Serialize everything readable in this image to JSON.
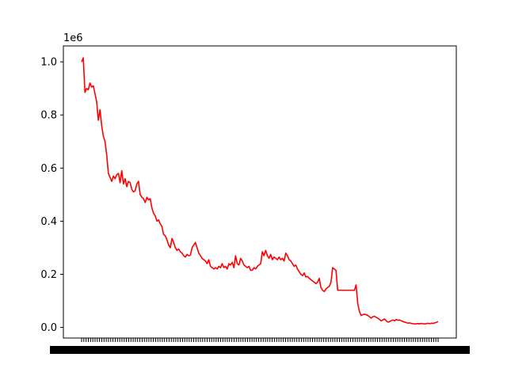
{
  "chart_data": {
    "type": "line",
    "title": "",
    "xlabel": "",
    "ylabel": "",
    "y_offset_label": "1e6",
    "y_scale": 1000000,
    "ylim": [
      -40000,
      1060000
    ],
    "yticks": [
      {
        "value": 0,
        "label": "0.0"
      },
      {
        "value": 200000,
        "label": "0.2"
      },
      {
        "value": 400000,
        "label": "0.4"
      },
      {
        "value": 600000,
        "label": "0.6"
      },
      {
        "value": 800000,
        "label": "0.8"
      },
      {
        "value": 1000000,
        "label": "1.0"
      }
    ],
    "x_tick_count": 160,
    "x_tick_labels_overlapping": true,
    "grid": false,
    "legend": "none",
    "series": [
      {
        "color": "#ff0000",
        "values": [
          1000000,
          1015000,
          885000,
          900000,
          895000,
          920000,
          905000,
          910000,
          880000,
          850000,
          780000,
          820000,
          760000,
          720000,
          700000,
          650000,
          580000,
          565000,
          550000,
          570000,
          560000,
          575000,
          580000,
          545000,
          590000,
          540000,
          560000,
          530000,
          550000,
          545000,
          520000,
          510000,
          515000,
          540000,
          550000,
          500000,
          490000,
          485000,
          470000,
          490000,
          480000,
          485000,
          450000,
          430000,
          420000,
          400000,
          405000,
          390000,
          380000,
          350000,
          345000,
          330000,
          310000,
          300000,
          335000,
          320000,
          300000,
          290000,
          295000,
          285000,
          280000,
          270000,
          265000,
          275000,
          270000,
          272000,
          300000,
          310000,
          320000,
          300000,
          280000,
          270000,
          260000,
          255000,
          250000,
          240000,
          255000,
          230000,
          225000,
          220000,
          225000,
          220000,
          230000,
          225000,
          240000,
          225000,
          230000,
          220000,
          240000,
          235000,
          245000,
          225000,
          270000,
          240000,
          235000,
          260000,
          250000,
          235000,
          230000,
          225000,
          230000,
          215000,
          215000,
          225000,
          220000,
          230000,
          235000,
          240000,
          285000,
          270000,
          290000,
          270000,
          260000,
          275000,
          255000,
          265000,
          260000,
          255000,
          265000,
          255000,
          260000,
          250000,
          280000,
          270000,
          255000,
          250000,
          240000,
          230000,
          235000,
          220000,
          210000,
          200000,
          195000,
          205000,
          190000,
          192000,
          185000,
          180000,
          175000,
          170000,
          165000,
          170000,
          185000,
          150000,
          140000,
          135000,
          145000,
          150000,
          155000,
          170000,
          225000,
          220000,
          215000,
          140000,
          140000,
          140000,
          140000,
          140000,
          140000,
          140000,
          140000,
          140000,
          140000,
          140000,
          160000,
          90000,
          60000,
          45000,
          48000,
          50000,
          48000,
          45000,
          40000,
          35000,
          40000,
          42000,
          38000,
          35000,
          30000,
          25000,
          28000,
          32000,
          25000,
          20000,
          22000,
          25000,
          28000,
          25000,
          30000,
          27000,
          28000,
          25000,
          22000,
          20000,
          18000,
          16000,
          17000,
          15000,
          14000,
          13000,
          14000,
          14500,
          13500,
          15000,
          14000,
          13000,
          14500,
          15500,
          14000,
          16000,
          15000,
          17000,
          19000,
          22000
        ]
      }
    ]
  }
}
